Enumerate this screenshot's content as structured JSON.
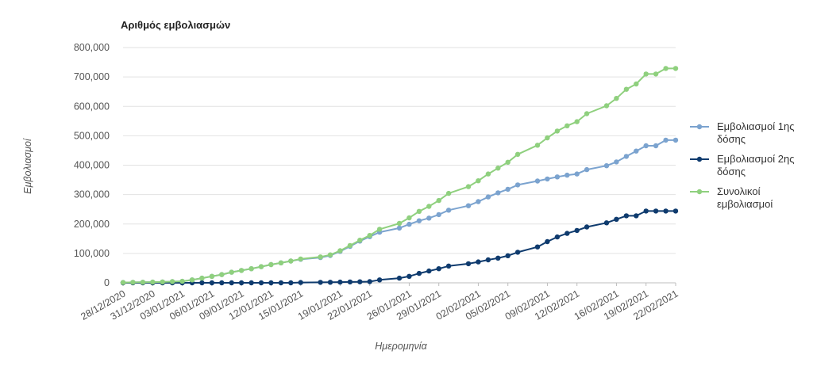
{
  "chart_data": {
    "type": "line",
    "title": "Αριθμός εμβολιασμών",
    "xlabel": "Ημερομηνία",
    "ylabel": "Εμβολιασμοί",
    "ylim": [
      0,
      800000
    ],
    "yticks": [
      0,
      100000,
      200000,
      300000,
      400000,
      500000,
      600000,
      700000,
      800000
    ],
    "ytick_labels": [
      "0",
      "100,000",
      "200,000",
      "300,000",
      "400,000",
      "500,000",
      "600,000",
      "700,000",
      "800,000"
    ],
    "x_tick_labels": [
      "28/12/2020",
      "31/12/2020",
      "03/01/2021",
      "06/01/2021",
      "09/01/2021",
      "12/01/2021",
      "15/01/2021",
      "19/01/2021",
      "22/01/2021",
      "26/01/2021",
      "29/01/2021",
      "02/02/2021",
      "05/02/2021",
      "09/02/2021",
      "12/02/2021",
      "16/02/2021",
      "19/02/2021",
      "22/02/2021"
    ],
    "x": [
      "28/12/2020",
      "29/12/2020",
      "30/12/2020",
      "31/12/2020",
      "01/01/2021",
      "02/01/2021",
      "03/01/2021",
      "04/01/2021",
      "05/01/2021",
      "06/01/2021",
      "07/01/2021",
      "08/01/2021",
      "09/01/2021",
      "10/01/2021",
      "11/01/2021",
      "12/01/2021",
      "13/01/2021",
      "14/01/2021",
      "15/01/2021",
      "17/01/2021",
      "18/01/2021",
      "19/01/2021",
      "20/01/2021",
      "21/01/2021",
      "22/01/2021",
      "23/01/2021",
      "25/01/2021",
      "26/01/2021",
      "27/01/2021",
      "28/01/2021",
      "29/01/2021",
      "30/01/2021",
      "01/02/2021",
      "02/02/2021",
      "03/02/2021",
      "04/02/2021",
      "05/02/2021",
      "06/02/2021",
      "08/02/2021",
      "09/02/2021",
      "10/02/2021",
      "11/02/2021",
      "12/02/2021",
      "13/02/2021",
      "15/02/2021",
      "16/02/2021",
      "17/02/2021",
      "18/02/2021",
      "19/02/2021",
      "20/02/2021",
      "21/02/2021",
      "22/02/2021"
    ],
    "grid": true,
    "legend_position": "right",
    "series": [
      {
        "name": "Εμβολιασμοί 1ης δόσης",
        "color": "#7ba3cf",
        "values": [
          1000,
          1500,
          2000,
          2500,
          3000,
          4000,
          5000,
          10000,
          16000,
          22000,
          28000,
          36000,
          42000,
          48000,
          55000,
          62000,
          68000,
          74000,
          80000,
          86000,
          93000,
          107000,
          124000,
          142000,
          157000,
          172000,
          186000,
          199000,
          211000,
          220000,
          232000,
          247000,
          262000,
          276000,
          292000,
          306000,
          318000,
          333000,
          346000,
          353000,
          360000,
          366000,
          370000,
          385000,
          398000,
          411000,
          430000,
          448000,
          466000,
          466000,
          485000,
          485000
        ]
      },
      {
        "name": "Εμβολιασμοί 2ης δόσης",
        "color": "#0f3b6e",
        "values": [
          0,
          0,
          0,
          0,
          0,
          0,
          0,
          0,
          0,
          0,
          0,
          0,
          0,
          0,
          0,
          0,
          0,
          0,
          1000,
          1500,
          2000,
          2500,
          3000,
          3500,
          4000,
          10000,
          16000,
          22000,
          32000,
          40000,
          48000,
          57000,
          65000,
          71000,
          78000,
          84000,
          92000,
          104000,
          122000,
          140000,
          156000,
          168000,
          178000,
          190000,
          204000,
          216000,
          228000,
          228000,
          244000,
          244000,
          244000,
          244000
        ]
      },
      {
        "name": "Συνολικοί εμβολιασμοί",
        "color": "#8fd07e",
        "values": [
          1000,
          1500,
          2000,
          2500,
          3000,
          4000,
          5000,
          10000,
          16000,
          22000,
          28000,
          36000,
          42000,
          48000,
          55000,
          62000,
          68000,
          74000,
          81000,
          88000,
          95000,
          109000,
          127000,
          145000,
          161000,
          182000,
          202000,
          221000,
          243000,
          260000,
          280000,
          304000,
          327000,
          347000,
          370000,
          390000,
          410000,
          437000,
          468000,
          493000,
          516000,
          534000,
          548000,
          575000,
          602000,
          627000,
          658000,
          676000,
          710000,
          710000,
          729000,
          729000
        ]
      }
    ]
  }
}
